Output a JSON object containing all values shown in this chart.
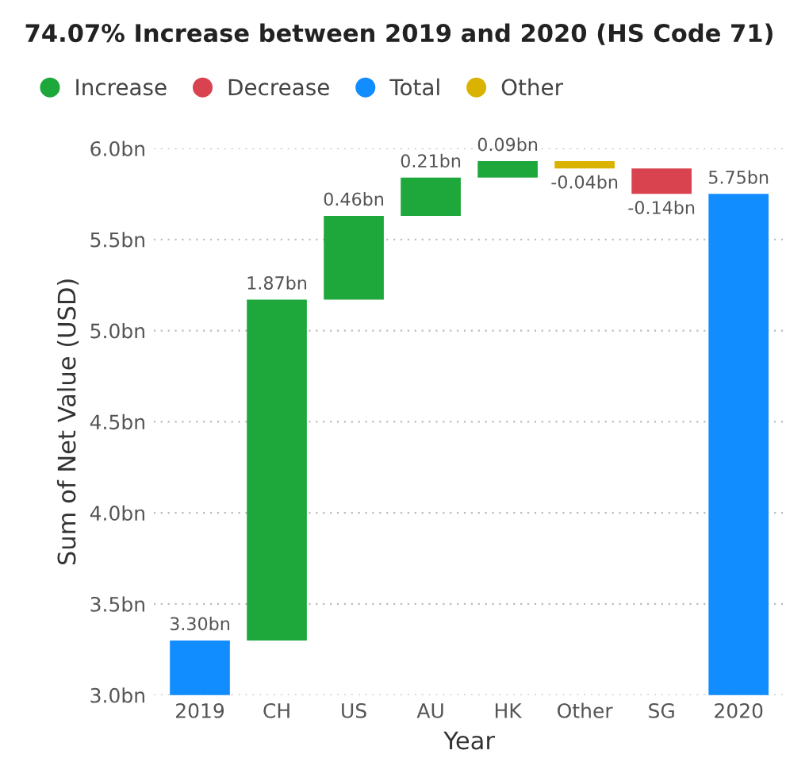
{
  "chart_data": {
    "type": "bar",
    "title": "74.07% Increase between 2019 and 2020 (HS Code 71)",
    "xlabel": "Year",
    "ylabel": "Sum of Net Value (USD)",
    "categories": [
      "2019",
      "CH",
      "US",
      "AU",
      "HK",
      "Other",
      "SG",
      "2020"
    ],
    "series": [
      {
        "name": "Increase",
        "color": "#1ea83c",
        "values": [
          null,
          1.87,
          0.46,
          0.21,
          0.09,
          null,
          null,
          null
        ],
        "base": [
          null,
          3.3,
          5.17,
          5.63,
          5.84,
          null,
          null,
          null
        ],
        "value_labels": [
          null,
          "1.87bn",
          "0.46bn",
          "0.21bn",
          "0.09bn",
          null,
          null,
          null
        ]
      },
      {
        "name": "Decrease",
        "color": "#d9434f",
        "values": [
          null,
          null,
          null,
          null,
          null,
          null,
          -0.14,
          null
        ],
        "base": [
          null,
          null,
          null,
          null,
          null,
          null,
          5.89,
          null
        ],
        "value_labels": [
          null,
          null,
          null,
          null,
          null,
          null,
          "-0.14bn",
          null
        ]
      },
      {
        "name": "Total",
        "color": "#118dff",
        "values": [
          3.3,
          null,
          null,
          null,
          null,
          null,
          null,
          5.75
        ],
        "value_labels": [
          "3.30bn",
          null,
          null,
          null,
          null,
          null,
          null,
          "5.75bn"
        ]
      },
      {
        "name": "Other",
        "color": "#d9b300",
        "values": [
          null,
          null,
          null,
          null,
          null,
          -0.04,
          null,
          null
        ],
        "base": [
          null,
          null,
          null,
          null,
          null,
          5.93,
          null,
          null
        ],
        "value_labels": [
          null,
          null,
          null,
          null,
          null,
          "-0.04bn",
          null,
          null
        ]
      }
    ],
    "ylim": [
      3.0,
      6.0
    ],
    "yticks": [
      {
        "value": 3.0,
        "label": "3.0bn"
      },
      {
        "value": 3.5,
        "label": "3.5bn"
      },
      {
        "value": 4.0,
        "label": "4.0bn"
      },
      {
        "value": 4.5,
        "label": "4.5bn"
      },
      {
        "value": 5.0,
        "label": "5.0bn"
      },
      {
        "value": 5.5,
        "label": "5.5bn"
      },
      {
        "value": 6.0,
        "label": "6.0bn"
      }
    ],
    "grid": "y",
    "legend": "top left"
  }
}
